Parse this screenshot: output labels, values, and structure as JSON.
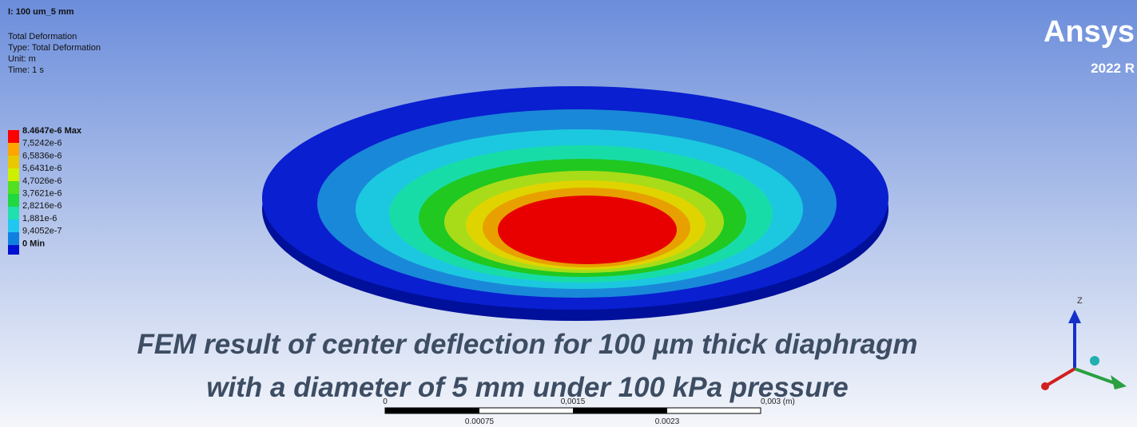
{
  "header": {
    "title": "I: 100 um_5 mm",
    "lines": [
      "Total Deformation",
      "Type: Total Deformation",
      "Unit: m",
      "Time: 1 s"
    ]
  },
  "legend": {
    "labels": [
      "8.4647e-6 Max",
      "7,5242e-6",
      "6,5836e-6",
      "5,6431e-6",
      "4,7026e-6",
      "3,7621e-6",
      "2,8216e-6",
      "1,881e-6",
      "9,4052e-7",
      "0 Min"
    ]
  },
  "logo": {
    "name": "Ansys",
    "version": "2022 R"
  },
  "scale_bar": {
    "top_labels": [
      "0",
      "0,0015",
      "0,003 (m)"
    ],
    "bottom_labels": [
      "0.00075",
      "0.0023"
    ]
  },
  "triad": {
    "axis": "Z"
  },
  "caption": {
    "lines": [
      "FEM result of center deflection for 100 µm thick diaphragm",
      "with a diameter of 5 mm under 100 kPa pressure"
    ]
  }
}
